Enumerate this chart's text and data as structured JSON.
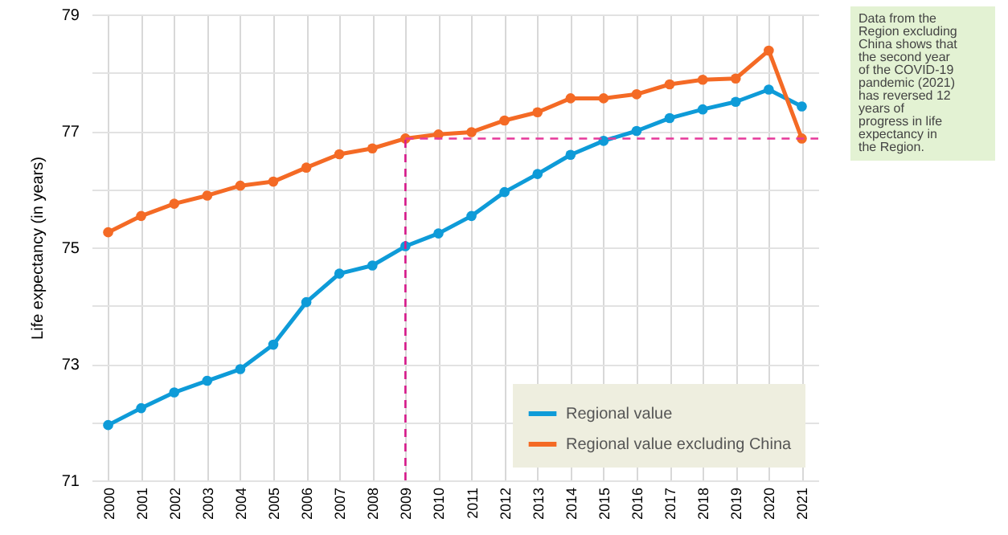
{
  "chart_data": {
    "type": "line",
    "ylabel": "Life expectancy (in years)",
    "x": [
      2000,
      2001,
      2002,
      2003,
      2004,
      2005,
      2006,
      2007,
      2008,
      2009,
      2010,
      2011,
      2012,
      2013,
      2014,
      2015,
      2016,
      2017,
      2018,
      2019,
      2020,
      2021
    ],
    "series": [
      {
        "name": "Regional value",
        "color": "#0e9bd8",
        "values": [
          71.95,
          72.24,
          72.51,
          72.71,
          72.91,
          73.33,
          74.06,
          74.55,
          74.69,
          75.02,
          75.24,
          75.54,
          75.95,
          76.26,
          76.59,
          76.83,
          77.0,
          77.22,
          77.37,
          77.5,
          77.71,
          77.42
        ]
      },
      {
        "name": "Regional value excluding China",
        "color": "#f46a25",
        "values": [
          75.26,
          75.54,
          75.75,
          75.89,
          76.06,
          76.13,
          76.37,
          76.6,
          76.7,
          76.87,
          76.94,
          76.98,
          77.18,
          77.32,
          77.56,
          77.56,
          77.63,
          77.8,
          77.88,
          77.9,
          78.38,
          76.87
        ]
      }
    ],
    "xlim": [
      1999.5,
      2021.5
    ],
    "xticks": [
      2000,
      2001,
      2002,
      2003,
      2004,
      2005,
      2006,
      2007,
      2008,
      2009,
      2010,
      2011,
      2012,
      2013,
      2014,
      2015,
      2016,
      2017,
      2018,
      2019,
      2020,
      2021
    ],
    "ylim": [
      71,
      79
    ],
    "yticks": [
      71,
      {
        "value": 72,
        "label": null
      },
      73,
      {
        "value": 74,
        "label": null
      },
      75,
      {
        "value": 76,
        "label": null
      },
      77,
      {
        "value": 78,
        "label": null
      },
      79
    ],
    "ref_lines": [
      {
        "axis": "x",
        "value": 2009,
        "color": "#d81b8c",
        "line_style": "dashed"
      },
      {
        "axis": "y",
        "value": 76.87,
        "color": "#e6399b",
        "line_style": "dashed"
      }
    ],
    "annotations": [
      "Data from the Region excluding China shows that the second year of the COVID-19 pandemic (2021) has reversed 12 years of progress in life expectancy in the Region."
    ],
    "grid": true,
    "legend": "bottom right",
    "marker": "circle",
    "line_style": "solid"
  }
}
